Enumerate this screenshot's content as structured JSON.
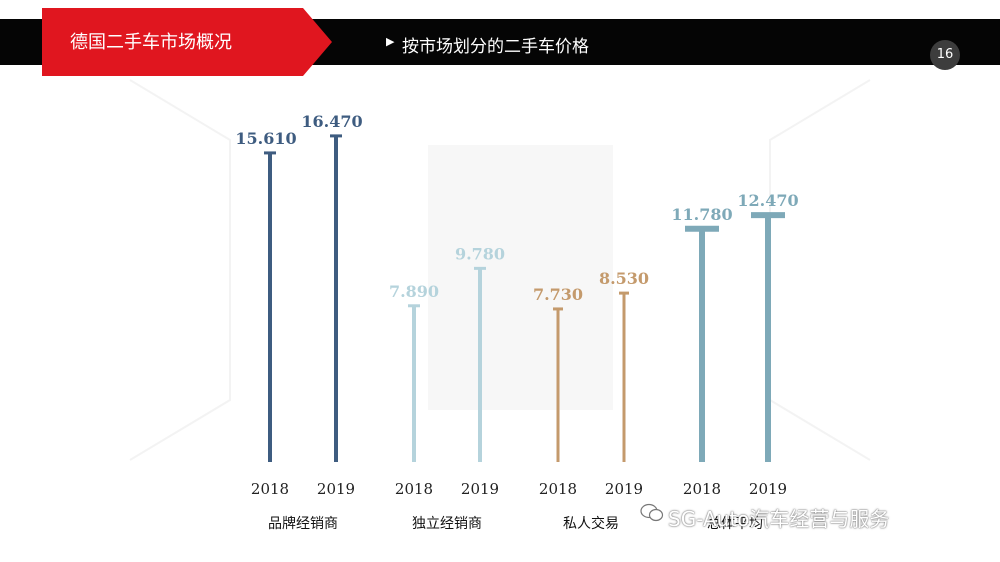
{
  "header": {
    "section_title": "德国二手车市场概况",
    "subtitle": "按市场划分的二手车价格",
    "page_number": "16"
  },
  "watermark": {
    "text": "SG-Auto汽车经营与服务",
    "icon": "wechat-icon"
  },
  "colors": {
    "header_black": "#050505",
    "header_red": "#e0161f",
    "brand_dealer": "#3e5c80",
    "independent_dealer": "#b5d3dc",
    "private": "#c49a6c",
    "average": "#7ea9b8"
  },
  "chart_data": {
    "type": "bar",
    "style": "lollipop-T",
    "grid": false,
    "legend": "none",
    "groups": [
      {
        "name": "品牌经销商",
        "color": "#3e5c80",
        "bars": [
          {
            "year": "2018",
            "value": 15610,
            "label": "15.610"
          },
          {
            "year": "2019",
            "value": 16470,
            "label": "16.470"
          }
        ]
      },
      {
        "name": "独立经销商",
        "color": "#b5d3dc",
        "bars": [
          {
            "year": "2018",
            "value": 7890,
            "label": "7.890"
          },
          {
            "year": "2019",
            "value": 9780,
            "label": "9.780"
          }
        ]
      },
      {
        "name": "私人交易",
        "color": "#c49a6c",
        "bars": [
          {
            "year": "2018",
            "value": 7730,
            "label": "7.730"
          },
          {
            "year": "2019",
            "value": 8530,
            "label": "8.530"
          }
        ]
      },
      {
        "name": "总体平均",
        "color": "#7ea9b8",
        "bars": [
          {
            "year": "2018",
            "value": 11780,
            "label": "11.780"
          },
          {
            "year": "2019",
            "value": 12470,
            "label": "12.470"
          }
        ]
      }
    ]
  }
}
